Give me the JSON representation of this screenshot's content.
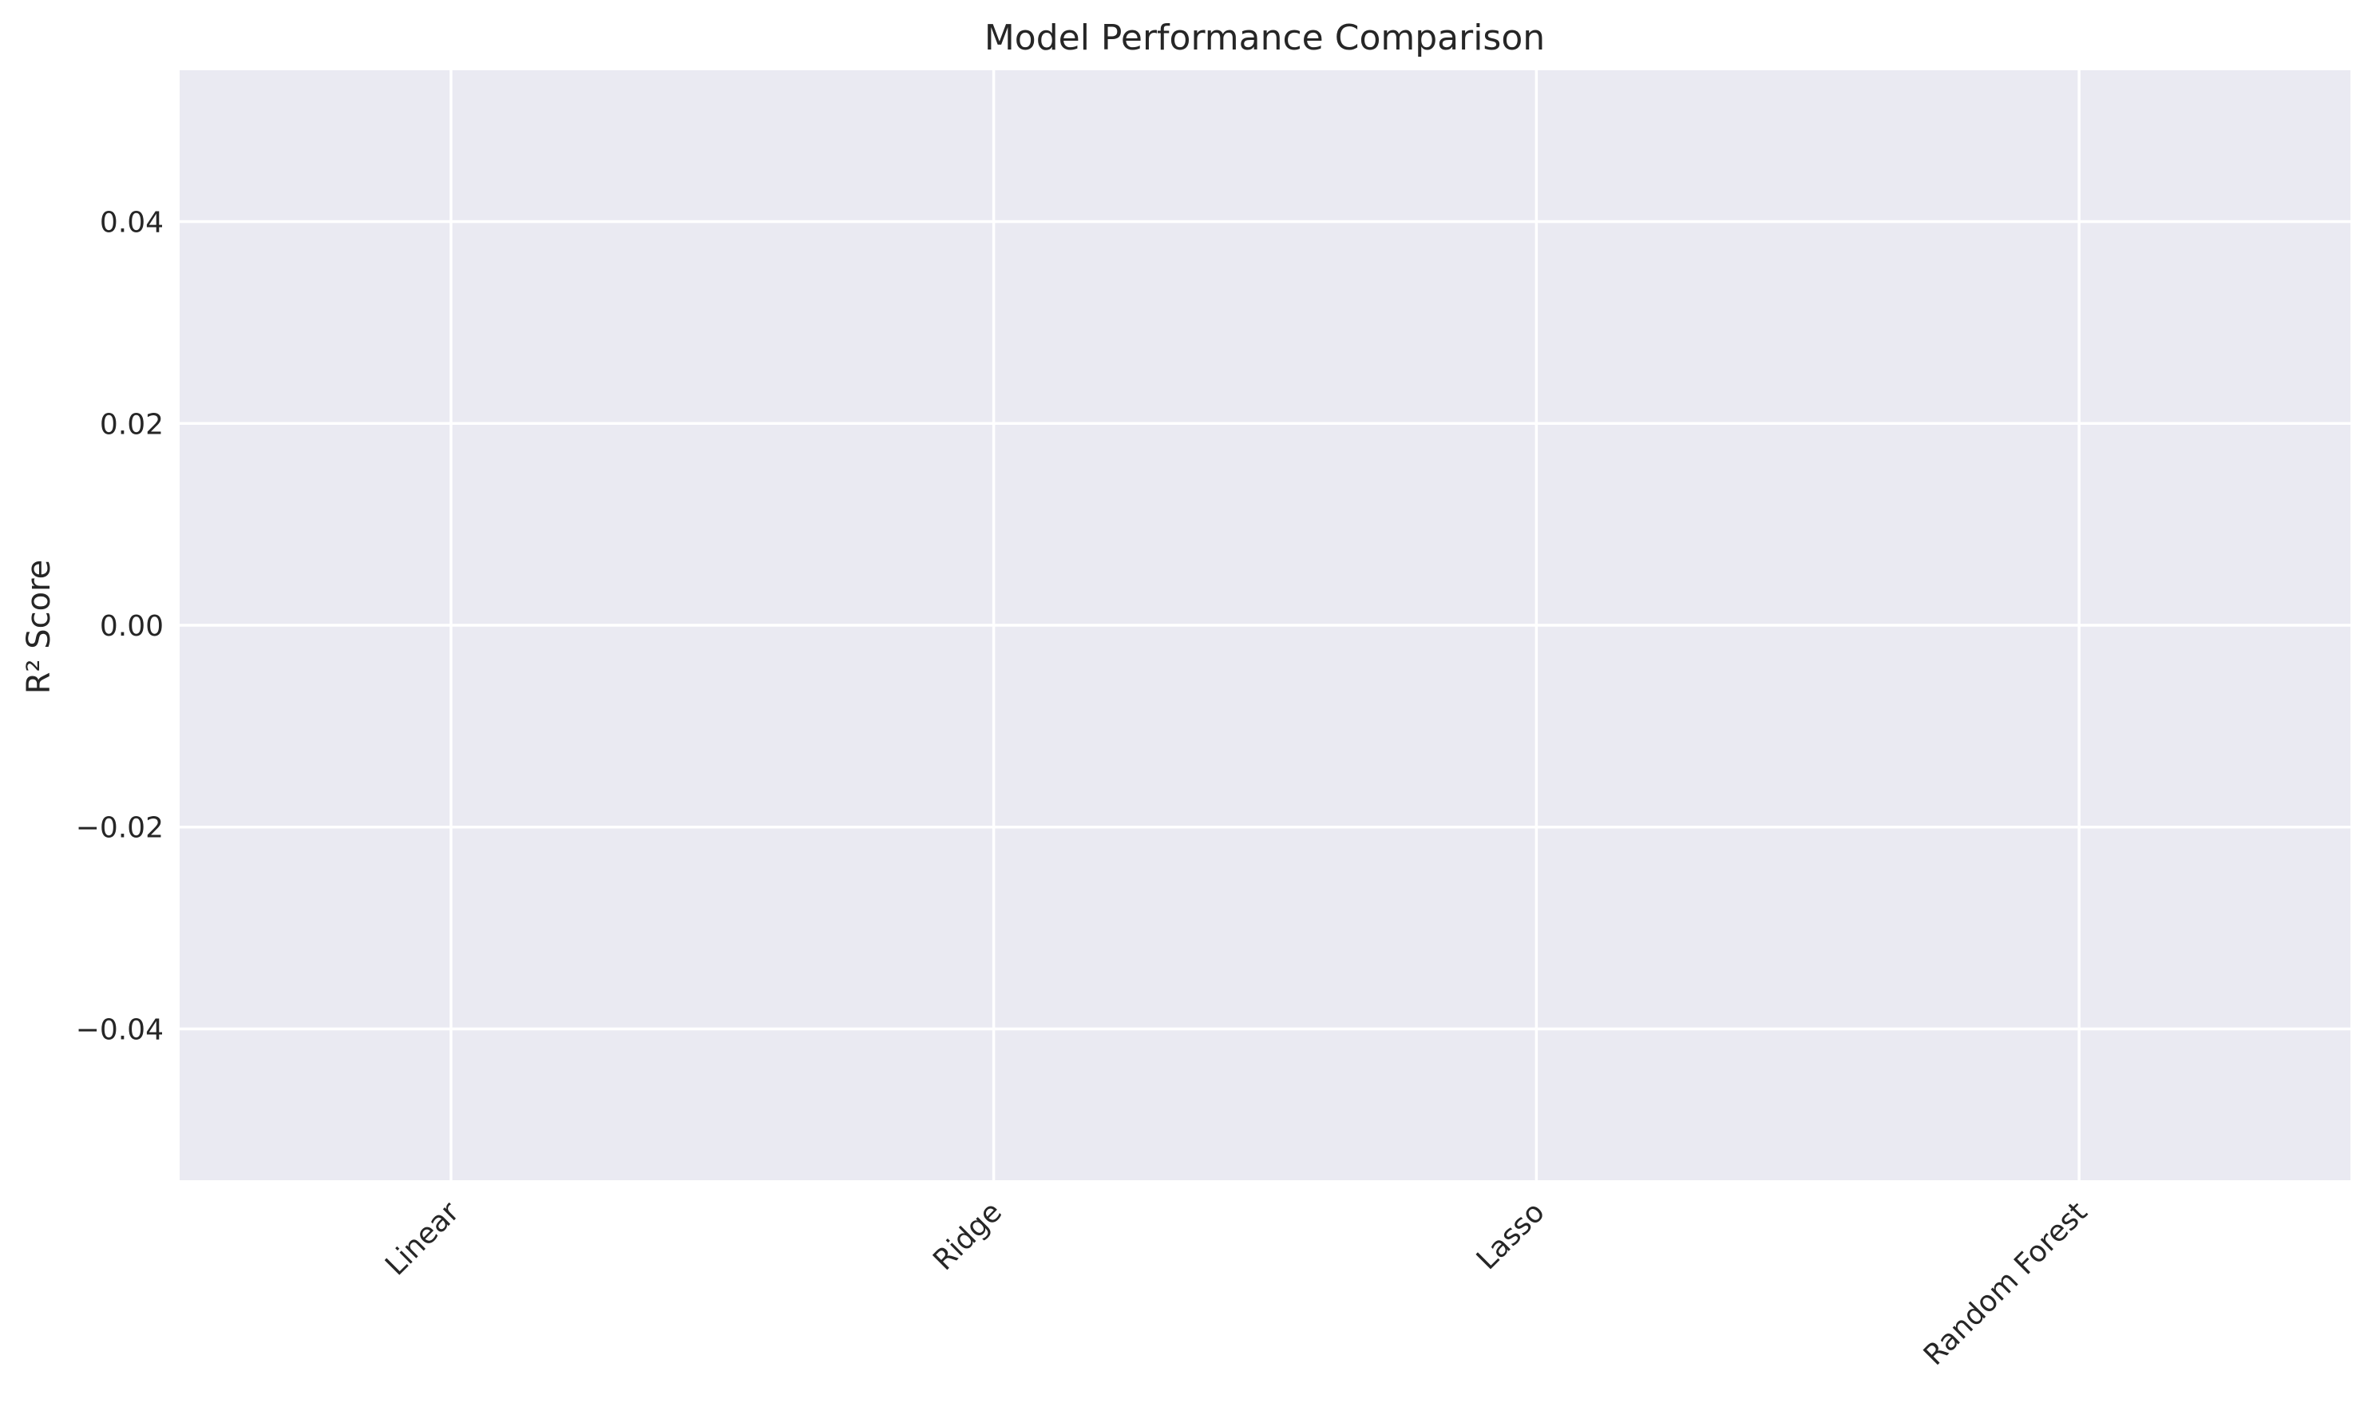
{
  "chart_data": {
    "type": "bar",
    "title": "Model Performance Comparison",
    "xlabel": "",
    "ylabel": "R² Score",
    "categories": [
      "Linear",
      "Ridge",
      "Lasso",
      "Random Forest"
    ],
    "values": [
      0,
      0,
      0,
      0
    ],
    "ylim": [
      -0.055,
      0.055
    ],
    "yticks": [
      -0.04,
      -0.02,
      0.0,
      0.02,
      0.04
    ],
    "ytick_labels": [
      "−0.04",
      "−0.02",
      "0.00",
      "0.02",
      "0.04"
    ],
    "xtick_rotation_deg": 45,
    "grid": true,
    "legend": "none",
    "colors": {
      "plot_background": "#eaeaf2",
      "grid": "#ffffff",
      "text": "#262626",
      "page_background": "#ffffff"
    }
  }
}
